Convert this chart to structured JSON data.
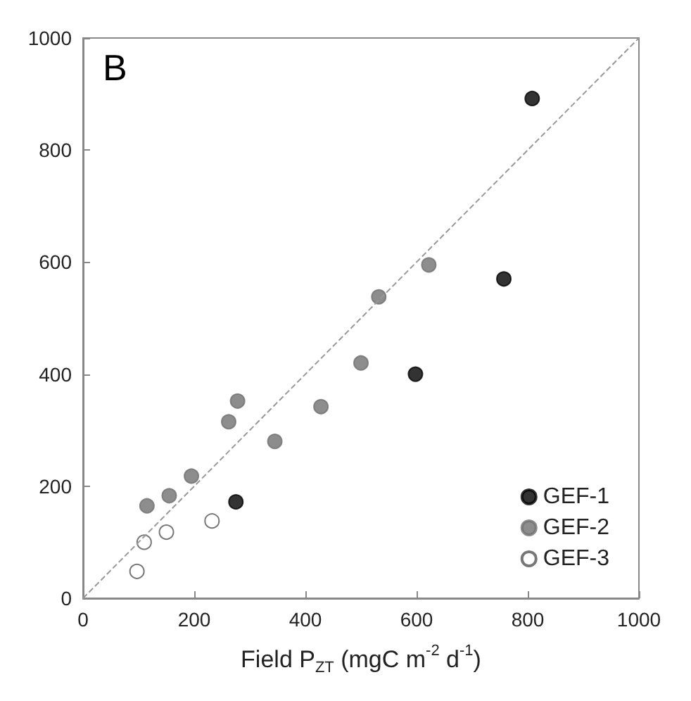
{
  "chart_data": {
    "type": "scatter",
    "title": "B",
    "xlabel": "Field P$_{ZT}$ (mgC m$^{-2}$ d$^{-1}$)",
    "series": [
      {
        "name": "GEF-1",
        "color": "#000000",
        "x": [
          275,
          598,
          757,
          808
        ],
        "values": [
          172,
          400,
          570,
          892
        ]
      },
      {
        "name": "GEF-2",
        "color": "#707070",
        "x": [
          115,
          155,
          195,
          262,
          278,
          345,
          428,
          500,
          532,
          622
        ],
        "values": [
          165,
          183,
          218,
          315,
          352,
          280,
          342,
          420,
          538,
          595
        ]
      },
      {
        "name": "GEF-3",
        "color": "#ffffff",
        "x": [
          97,
          110,
          150,
          232
        ],
        "values": [
          48,
          100,
          118,
          138
        ]
      },
      {
        "type": "line",
        "color": "#999999",
        "line_style": "dashed",
        "marker": "none",
        "x": [
          0,
          1000
        ],
        "values": [
          0,
          1000
        ]
      }
    ],
    "xlim": [
      0,
      1000
    ],
    "ylim": [
      0,
      1000
    ],
    "xticks": [
      0,
      200,
      400,
      600,
      800,
      1000
    ],
    "yticks": [
      0,
      200,
      400,
      600,
      800,
      1000
    ],
    "marker": "circle",
    "legend": "bottom right",
    "grid": false
  }
}
